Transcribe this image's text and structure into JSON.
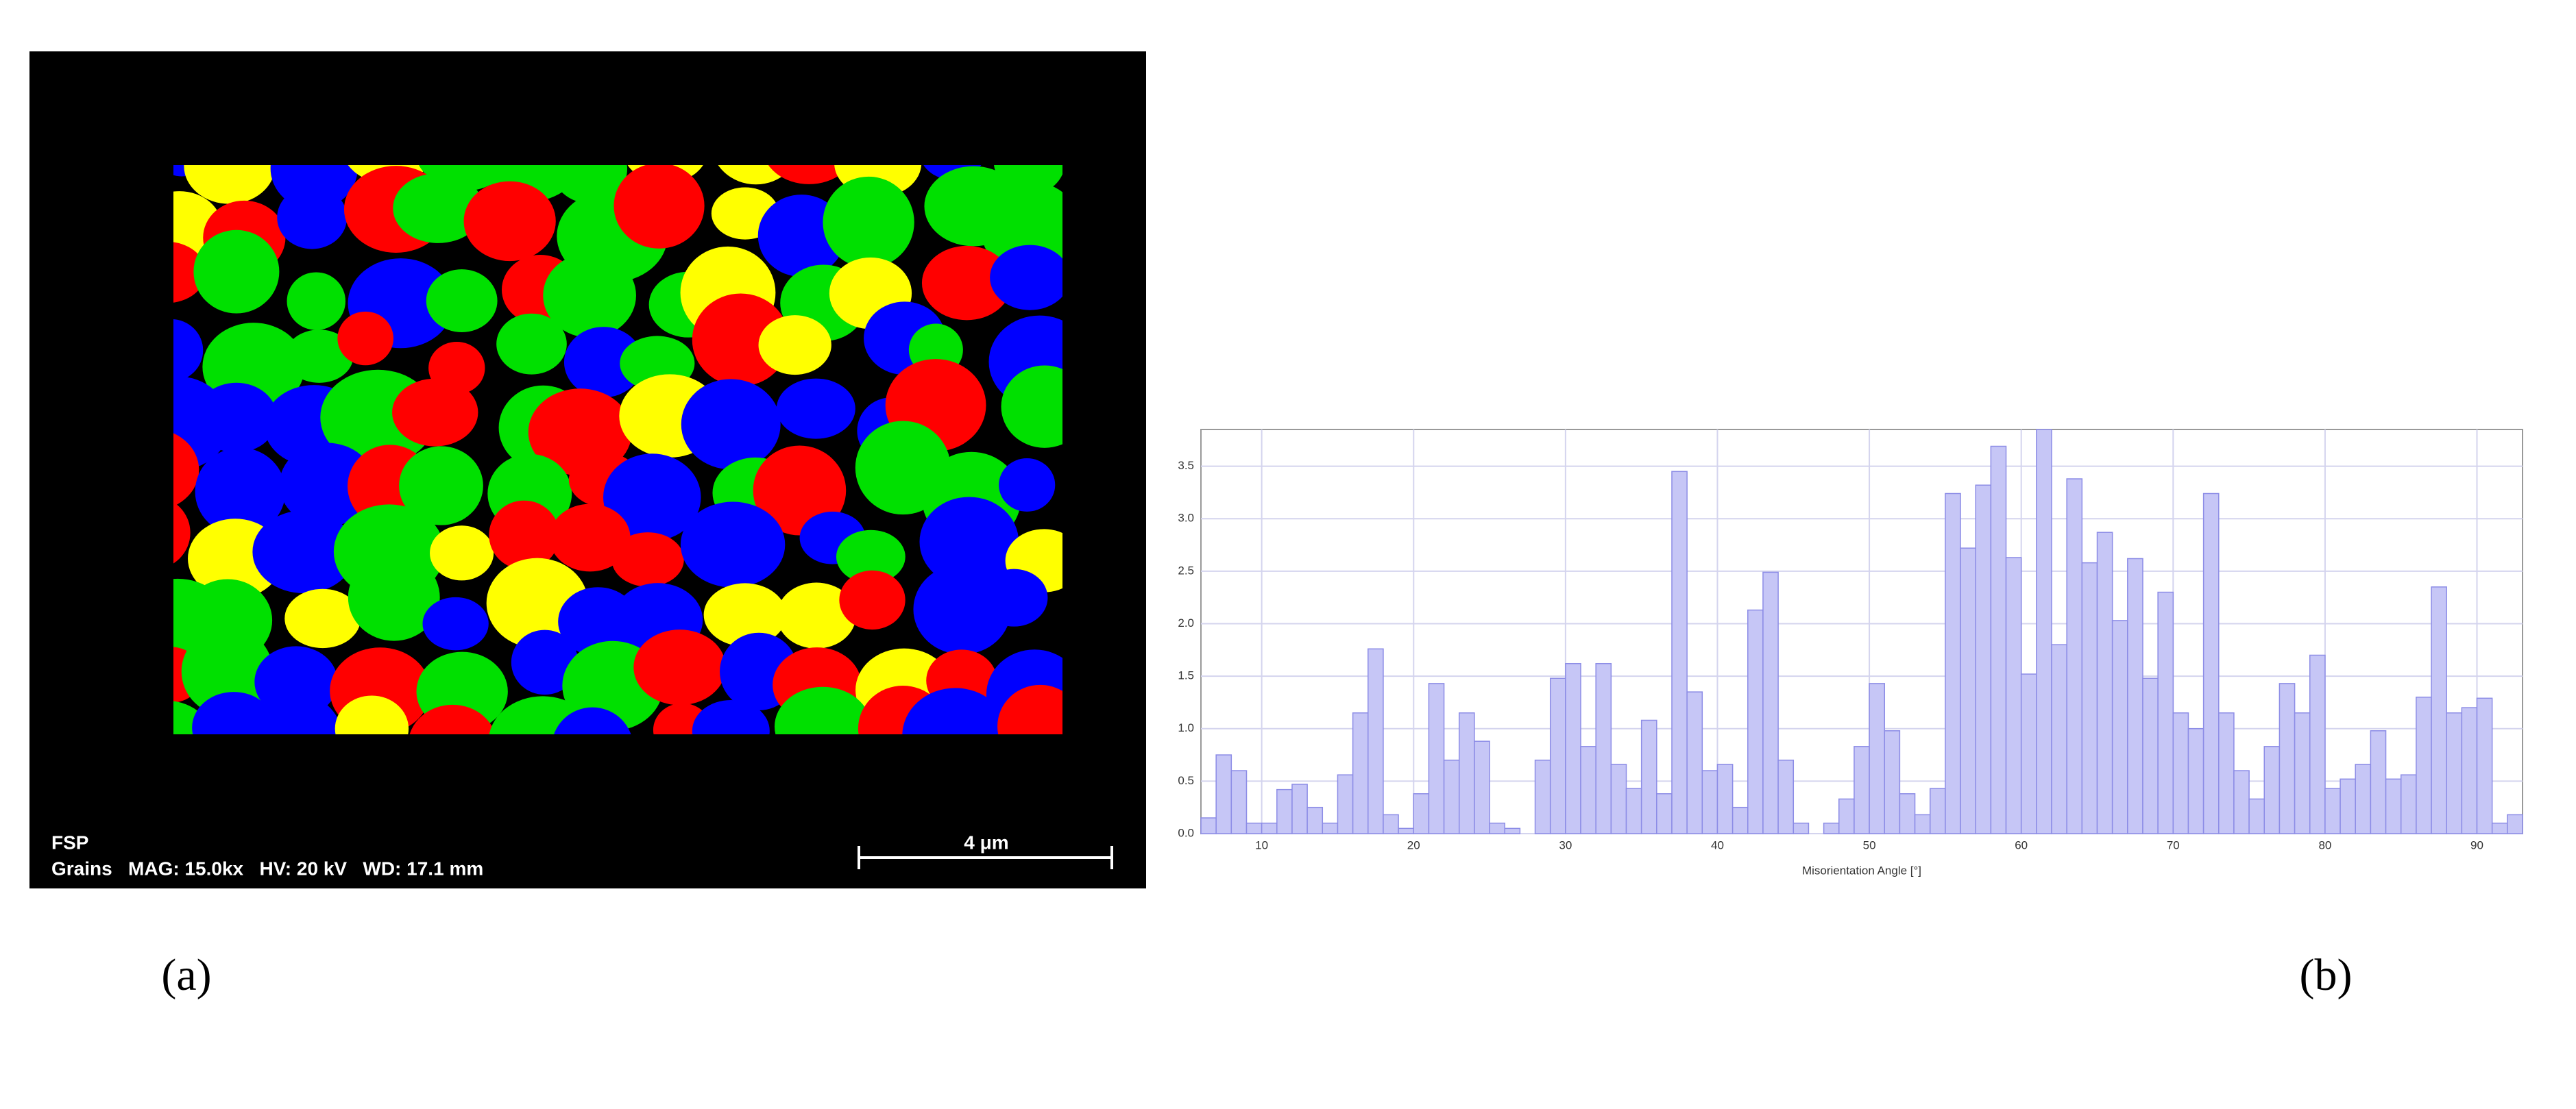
{
  "panel_a": {
    "sample": "FSP",
    "info": "Grains   MAG: 15.0kx   HV: 20 kV   WD: 17.1 mm",
    "scale_bar": "4 μm"
  },
  "labels": [
    "(a)",
    "(b)"
  ],
  "chart_data": {
    "type": "histogram",
    "x_label": "Misorientation Angle [°]",
    "bins": [
      6,
      7,
      8,
      9,
      10,
      11,
      12,
      13,
      14,
      15,
      16,
      17,
      18,
      19,
      20,
      21,
      22,
      23,
      24,
      25,
      26,
      27,
      28,
      29,
      30,
      31,
      32,
      33,
      34,
      35,
      36,
      37,
      38,
      39,
      40,
      41,
      42,
      43,
      44,
      45,
      46,
      47,
      48,
      49,
      50,
      51,
      52,
      53,
      54,
      55,
      56,
      57,
      58,
      59,
      60,
      61,
      62,
      63,
      64,
      65,
      66,
      67,
      68,
      69,
      70,
      71,
      72,
      73,
      74,
      75,
      76,
      77,
      78,
      79,
      80,
      81,
      82,
      83,
      84,
      85,
      86,
      87,
      88,
      89,
      90,
      91,
      92,
      93
    ],
    "counts": [
      0.15,
      0.75,
      0.6,
      0.1,
      0.1,
      0.42,
      0.47,
      0.25,
      0.1,
      0.56,
      1.15,
      1.76,
      0.18,
      0.05,
      0.38,
      1.43,
      0.7,
      1.15,
      0.88,
      0.1,
      0.05,
      0,
      0.7,
      1.48,
      1.62,
      0.83,
      1.62,
      0.66,
      0.43,
      1.08,
      0.38,
      3.45,
      1.35,
      0.6,
      0.66,
      0.25,
      2.13,
      2.49,
      0.7,
      0.1,
      0,
      0.1,
      0.33,
      0.83,
      1.43,
      0.98,
      0.38,
      0.18,
      0.43,
      3.24,
      2.72,
      3.32,
      3.69,
      2.63,
      1.52,
      3.85,
      1.8,
      3.38,
      2.58,
      2.87,
      2.03,
      2.62,
      1.48,
      2.3,
      1.15,
      1.0,
      3.24,
      1.15,
      0.6,
      0.33,
      0.83,
      1.43,
      1.15,
      1.7,
      0.43,
      0.52,
      0.66,
      0.98,
      0.52,
      0.56,
      1.3,
      2.35,
      1.15,
      1.2,
      1.29,
      0.1,
      0.18
    ],
    "color": "#c6c6f6",
    "edge_color": "#8c8ce6",
    "xlim": [
      6,
      93
    ],
    "ylim": [
      0,
      3.85
    ],
    "xticks": [
      10,
      20,
      30,
      40,
      50,
      60,
      70,
      80,
      90
    ],
    "yticks": [
      {
        "value": 0,
        "label": "0.0"
      },
      0.5,
      {
        "value": 1,
        "label": "1.0"
      },
      1.5,
      {
        "value": 2,
        "label": "2.0"
      },
      2.5,
      {
        "value": 3,
        "label": "3.0"
      },
      3.5
    ],
    "grid": true
  }
}
